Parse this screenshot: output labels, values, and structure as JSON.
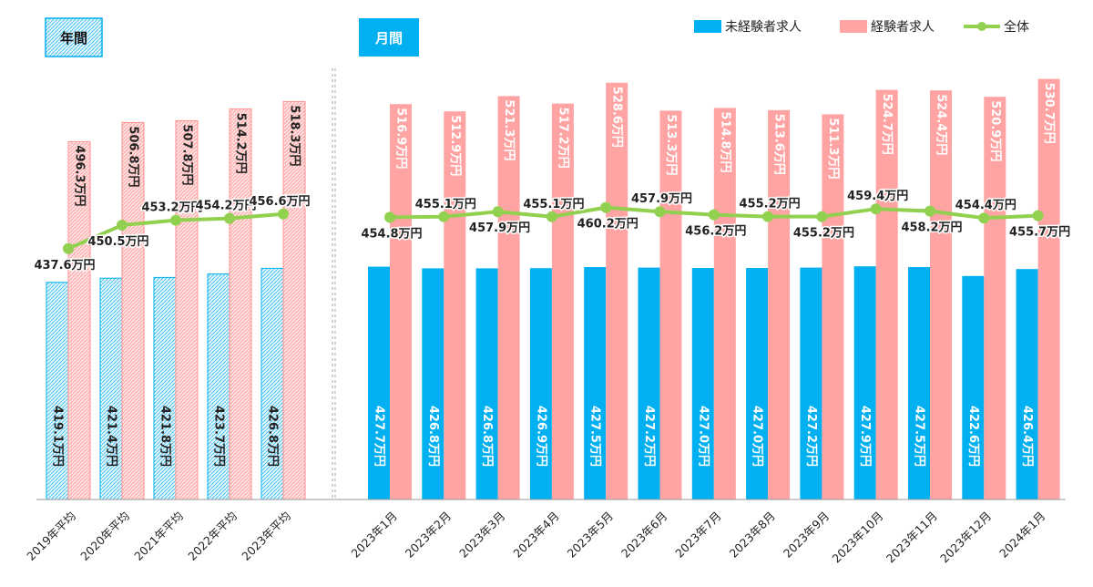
{
  "chart_data": {
    "type": "bar",
    "section_labels": {
      "annual": "年間",
      "monthly": "月間"
    },
    "categories": [
      "2019年平均",
      "2020年平均",
      "2021年平均",
      "2022年平均",
      "2023年平均",
      "2023年1月",
      "2023年2月",
      "2023年3月",
      "2023年4月",
      "2023年5月",
      "2023年6月",
      "2023年7月",
      "2023年8月",
      "2023年9月",
      "2023年10月",
      "2023年11月",
      "2023年12月",
      "2024年1月"
    ],
    "series": [
      {
        "name": "未経験者求人",
        "color": "#00B0F0",
        "values": [
          419.1,
          421.4,
          421.8,
          423.7,
          426.8,
          427.7,
          426.8,
          426.8,
          426.9,
          427.5,
          427.2,
          427.0,
          427.0,
          427.2,
          427.9,
          427.5,
          422.6,
          426.4
        ],
        "labels": [
          "419.1万円",
          "421.4万円",
          "421.8万円",
          "423.7万円",
          "426.8万円",
          "427.7万円",
          "426.8万円",
          "426.8万円",
          "426.9万円",
          "427.5万円",
          "427.2万円",
          "427.0万円",
          "427.0万円",
          "427.2万円",
          "427.9万円",
          "427.5万円",
          "422.6万円",
          "426.4万円"
        ]
      },
      {
        "name": "経験者求人",
        "color": "#FFA3A3",
        "values": [
          496.3,
          506.8,
          507.8,
          514.2,
          518.3,
          516.9,
          512.9,
          521.3,
          517.2,
          528.6,
          513.3,
          514.8,
          513.6,
          511.3,
          524.7,
          524.4,
          520.9,
          530.7
        ],
        "labels": [
          "496.3万円",
          "506.8万円",
          "507.8万円",
          "514.2万円",
          "518.3万円",
          "516.9万円",
          "512.9万円",
          "521.3万円",
          "517.2万円",
          "528.6万円",
          "513.3万円",
          "514.8万円",
          "513.6万円",
          "511.3万円",
          "524.7万円",
          "524.4万円",
          "520.9万円",
          "530.7万円"
        ]
      },
      {
        "name": "全体",
        "type": "line",
        "color": "#92D050",
        "values": [
          437.6,
          450.5,
          453.2,
          454.2,
          456.6,
          454.8,
          455.1,
          457.9,
          455.1,
          460.2,
          457.9,
          456.2,
          455.2,
          455.2,
          459.4,
          458.2,
          454.4,
          455.7
        ],
        "labels": [
          "437.6万円",
          "450.5万円",
          "453.2万円",
          "454.2万円",
          "456.6万円",
          "454.8万円",
          "455.1万円",
          "457.9万円",
          "455.1万円",
          "460.2万円",
          "457.9万円",
          "456.2万円",
          "455.2万円",
          "455.2万円",
          "459.4万円",
          "458.2万円",
          "454.4万円",
          "455.7万円"
        ]
      }
    ],
    "legend": {
      "position": "top-right",
      "items": [
        "未経験者求人",
        "経験者求人",
        "全体"
      ]
    },
    "hatched_categories": 5
  }
}
